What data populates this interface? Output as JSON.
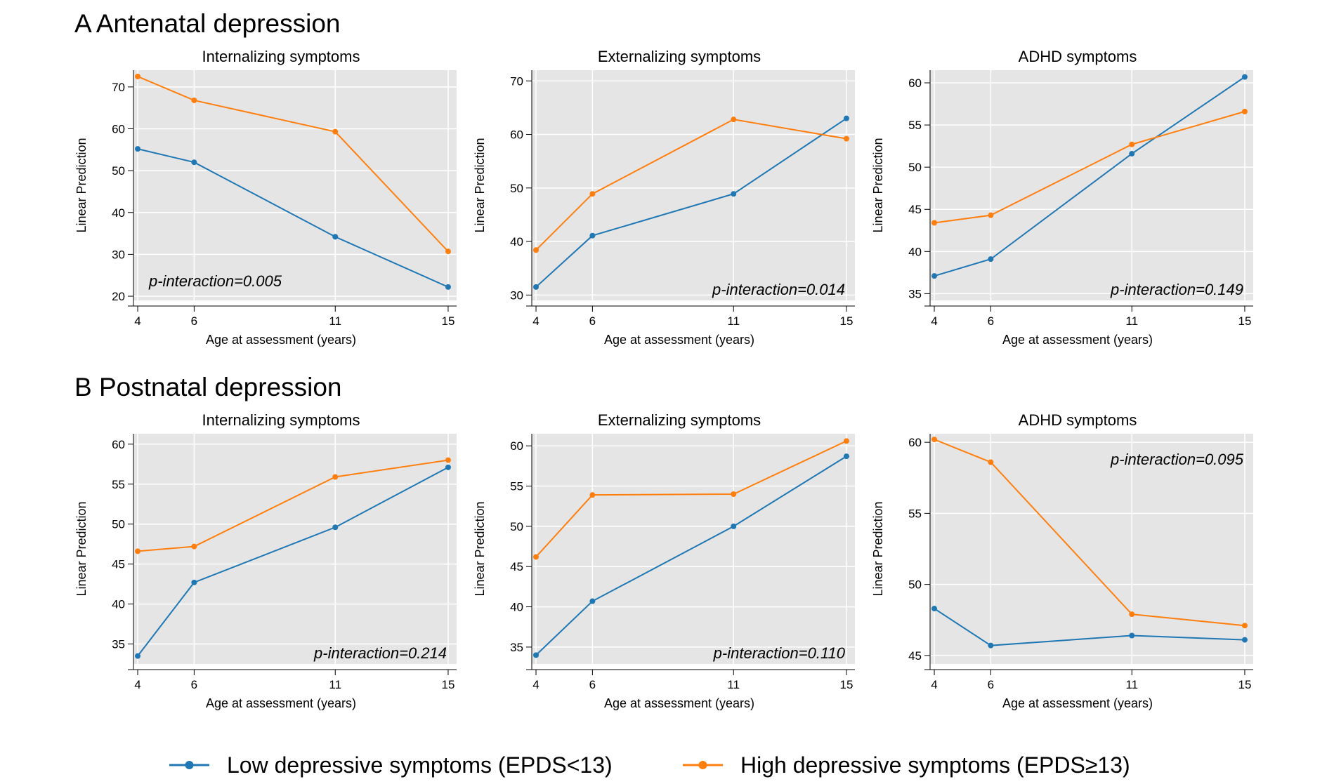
{
  "sections": [
    {
      "title": "A Antenatal depression"
    },
    {
      "title": "B Postnatal depression"
    }
  ],
  "chart_data": [
    {
      "type": "line",
      "section": "A Antenatal depression",
      "title": "Internalizing symptoms",
      "xlabel": "Age at assessment (years)",
      "ylabel": "Linear Prediction",
      "x": [
        4,
        6,
        11,
        15
      ],
      "xlim": [
        3.85,
        15.3
      ],
      "ylim": [
        19,
        74
      ],
      "yticks": [
        20,
        30,
        40,
        50,
        60,
        70
      ],
      "grid": true,
      "annotation": "p-interaction=0.005",
      "annotation_anchor": "lower-left",
      "series": [
        {
          "name": "Low depressive symptoms (EPDS<13)",
          "values": [
            55.2,
            52.0,
            34.2,
            22.2
          ]
        },
        {
          "name": "High depressive symptoms (EPDS≥13)",
          "values": [
            72.5,
            66.8,
            59.3,
            30.7
          ]
        }
      ]
    },
    {
      "type": "line",
      "section": "A Antenatal depression",
      "title": "Externalizing symptoms",
      "xlabel": "Age at assessment (years)",
      "ylabel": "Linear Prediction",
      "x": [
        4,
        6,
        11,
        15
      ],
      "xlim": [
        3.85,
        15.3
      ],
      "ylim": [
        29,
        72
      ],
      "yticks": [
        30,
        40,
        50,
        60,
        70
      ],
      "grid": true,
      "annotation": "p-interaction=0.014",
      "annotation_anchor": "lower-right",
      "series": [
        {
          "name": "Low depressive symptoms (EPDS<13)",
          "values": [
            31.5,
            41.1,
            48.9,
            63.0
          ]
        },
        {
          "name": "High depressive symptoms (EPDS≥13)",
          "values": [
            38.4,
            48.9,
            62.8,
            59.2
          ]
        }
      ]
    },
    {
      "type": "line",
      "section": "A Antenatal depression",
      "title": "ADHD symptoms",
      "xlabel": "Age at assessment (years)",
      "ylabel": "Linear Prediction",
      "x": [
        4,
        6,
        11,
        15
      ],
      "xlim": [
        3.85,
        15.3
      ],
      "ylim": [
        34.2,
        61.5
      ],
      "yticks": [
        35,
        40,
        45,
        50,
        55,
        60
      ],
      "grid": true,
      "annotation": "p-interaction=0.149",
      "annotation_anchor": "lower-right",
      "series": [
        {
          "name": "Low depressive symptoms (EPDS<13)",
          "values": [
            37.1,
            39.1,
            51.6,
            60.7
          ]
        },
        {
          "name": "High depressive symptoms (EPDS≥13)",
          "values": [
            43.4,
            44.3,
            52.7,
            56.6
          ]
        }
      ]
    },
    {
      "type": "line",
      "section": "B Postnatal depression",
      "title": "Internalizing symptoms",
      "xlabel": "Age at assessment (years)",
      "ylabel": "Linear Prediction",
      "x": [
        4,
        6,
        11,
        15
      ],
      "xlim": [
        3.85,
        15.3
      ],
      "ylim": [
        32.5,
        61.3
      ],
      "yticks": [
        35,
        40,
        45,
        50,
        55,
        60
      ],
      "grid": true,
      "annotation": "p-interaction=0.214",
      "annotation_anchor": "lower-right",
      "series": [
        {
          "name": "Low depressive symptoms (EPDS<13)",
          "values": [
            33.5,
            42.7,
            49.6,
            57.1
          ]
        },
        {
          "name": "High depressive symptoms (EPDS≥13)",
          "values": [
            46.6,
            47.2,
            55.9,
            58.0
          ]
        }
      ]
    },
    {
      "type": "line",
      "section": "B Postnatal depression",
      "title": "Externalizing symptoms",
      "xlabel": "Age at assessment (years)",
      "ylabel": "Linear Prediction",
      "x": [
        4,
        6,
        11,
        15
      ],
      "xlim": [
        3.85,
        15.3
      ],
      "ylim": [
        32.9,
        61.5
      ],
      "yticks": [
        35,
        40,
        45,
        50,
        55,
        60
      ],
      "grid": true,
      "annotation": "p-interaction=0.110",
      "annotation_anchor": "lower-right",
      "series": [
        {
          "name": "Low depressive symptoms (EPDS<13)",
          "values": [
            34.0,
            40.7,
            50.0,
            58.7
          ]
        },
        {
          "name": "High depressive symptoms (EPDS≥13)",
          "values": [
            46.2,
            53.9,
            54.0,
            60.6
          ]
        }
      ]
    },
    {
      "type": "line",
      "section": "B Postnatal depression",
      "title": "ADHD symptoms",
      "xlabel": "Age at assessment (years)",
      "ylabel": "Linear Prediction",
      "x": [
        4,
        6,
        11,
        15
      ],
      "xlim": [
        3.85,
        15.3
      ],
      "ylim": [
        44.4,
        60.6
      ],
      "yticks": [
        45,
        50,
        55,
        60
      ],
      "grid": true,
      "annotation": "p-interaction=0.095",
      "annotation_anchor": "upper-right",
      "series": [
        {
          "name": "Low depressive symptoms (EPDS<13)",
          "values": [
            48.3,
            45.7,
            46.4,
            46.1
          ]
        },
        {
          "name": "High depressive symptoms (EPDS≥13)",
          "values": [
            60.2,
            58.6,
            47.9,
            47.1
          ]
        }
      ]
    }
  ],
  "legend": {
    "placement": "bottom-center",
    "items": [
      {
        "label": "Low depressive symptoms (EPDS<13)",
        "color": "#1f77b4"
      },
      {
        "label": "High depressive symptoms (EPDS≥13)",
        "color": "#ff7f0e"
      }
    ]
  },
  "colors": {
    "low": "#1f77b4",
    "high": "#ff7f0e",
    "panel_bg": "#e5e5e5",
    "grid": "#ffffff"
  }
}
